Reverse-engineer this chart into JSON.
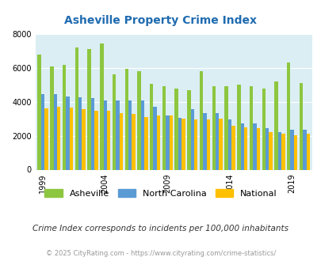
{
  "title": "Asheville Property Crime Index",
  "colors": {
    "asheville": "#8dc63f",
    "north_carolina": "#5b9bd5",
    "national": "#ffc000"
  },
  "ylim": [
    0,
    8000
  ],
  "yticks": [
    0,
    2000,
    4000,
    6000,
    8000
  ],
  "plot_bg": "#dbeef4",
  "title_color": "#1f6bb0",
  "grid_color": "#ffffff",
  "legend_labels": [
    "Asheville",
    "North Carolina",
    "National"
  ],
  "subtitle": "Crime Index corresponds to incidents per 100,000 inhabitants",
  "footnote": "© 2025 CityRating.com - https://www.cityrating.com/crime-statistics/",
  "xtick_years": [
    1999,
    2004,
    2009,
    2014,
    2019
  ],
  "years": [
    1999,
    2000,
    2001,
    2002,
    2003,
    2004,
    2005,
    2006,
    2007,
    2008,
    2009,
    2010,
    2011,
    2012,
    2013,
    2014,
    2015,
    2016,
    2017,
    2018,
    2019,
    2020
  ],
  "asheville": [
    6800,
    6100,
    6200,
    7200,
    7100,
    7450,
    5600,
    5950,
    5800,
    5050,
    4900,
    4800,
    4700,
    5800,
    4900,
    4900,
    5000,
    4900,
    4800,
    5200,
    6300,
    5100
  ],
  "north_carolina": [
    4450,
    4450,
    4300,
    4250,
    4200,
    4100,
    4100,
    4100,
    4100,
    3700,
    3200,
    3050,
    3550,
    3350,
    3350,
    2950,
    2750,
    2750,
    2450,
    2200,
    2350,
    2350
  ],
  "national": [
    3600,
    3700,
    3650,
    3550,
    3450,
    3450,
    3350,
    3300,
    3100,
    3200,
    3200,
    3000,
    2950,
    2950,
    3000,
    2600,
    2500,
    2450,
    2200,
    2100,
    2050,
    2100
  ]
}
